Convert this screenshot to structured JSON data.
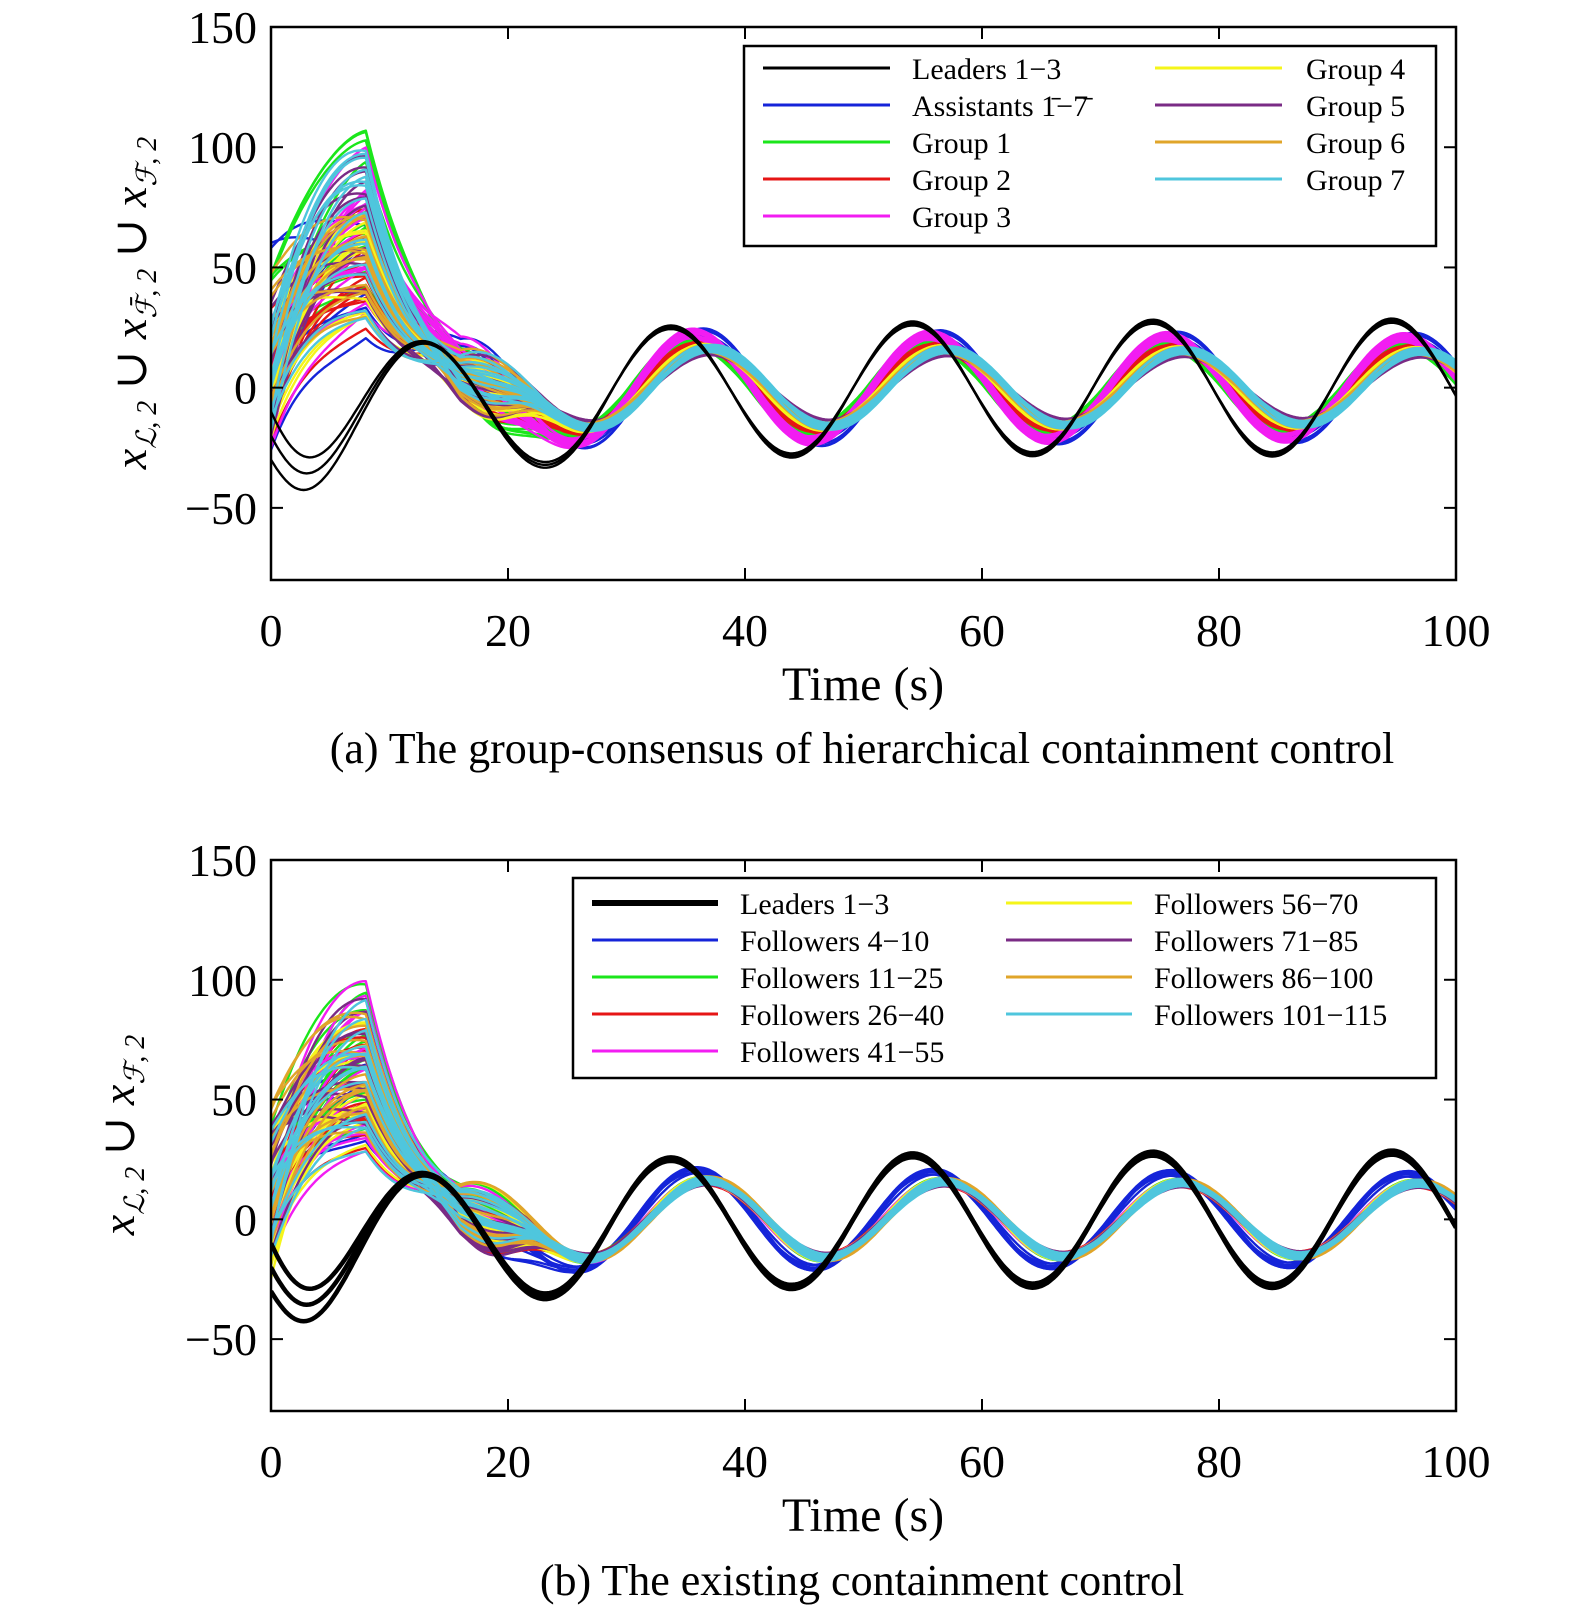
{
  "chart_data": [
    {
      "type": "line",
      "caption": "(a) The group-consensus of hierarchical containment control",
      "xlabel": "Time (s)",
      "ylabel": "x_{L,2} ∪ x_{F̄,2} ∪ x_{F,2}",
      "xlim": [
        0,
        100
      ],
      "ylim": [
        -80,
        150
      ],
      "xticks": [
        "0",
        "20",
        "40",
        "60",
        "80",
        "100"
      ],
      "yticks": [
        "−50",
        "0",
        "50",
        "100",
        "150"
      ],
      "grid": false,
      "legend_position": "top-right",
      "legend_columns": 2,
      "series": [
        {
          "name": "Leaders 1−3",
          "color": "#000000",
          "line_width": 2.4,
          "amp_scale": 1.0,
          "phase_shift": 0.0,
          "lines": 3,
          "t0": [
            -30,
            -20,
            -10
          ],
          "v0": [
            -1.0,
            -0.8,
            -0.6
          ]
        },
        {
          "name": "Assistants 1̄−7̄",
          "color": "#1524d9",
          "line_width": 2.4,
          "amp_scale": 0.85,
          "phase_shift": 0.6,
          "lines": 7,
          "t0": [
            -30,
            85
          ],
          "v0": [
            -2,
            2
          ]
        },
        {
          "name": "Group 1",
          "color": "#1be61b",
          "line_width": 2.4,
          "amp_scale": 0.7,
          "phase_shift": 0.25,
          "lines": 15,
          "t0": [
            -10,
            50
          ],
          "v0": [
            -1,
            2
          ]
        },
        {
          "name": "Group 2",
          "color": "#e61515",
          "line_width": 2.4,
          "amp_scale": 0.66,
          "phase_shift": 0.55,
          "lines": 15,
          "t0": [
            -25,
            40
          ],
          "v0": [
            -1,
            1
          ]
        },
        {
          "name": "Group 3",
          "color": "#f21df2",
          "line_width": 2.4,
          "amp_scale": 0.82,
          "phase_shift": 0.35,
          "lines": 15,
          "t0": [
            -25,
            35
          ],
          "v0": [
            -1,
            1
          ]
        },
        {
          "name": "Group 4",
          "color": "#f5f51a",
          "line_width": 2.4,
          "amp_scale": 0.62,
          "phase_shift": 0.8,
          "lines": 15,
          "t0": [
            -25,
            30
          ],
          "v0": [
            -1,
            2
          ]
        },
        {
          "name": "Group 5",
          "color": "#7a2b85",
          "line_width": 2.4,
          "amp_scale": 0.55,
          "phase_shift": 1.0,
          "lines": 15,
          "t0": [
            -20,
            40
          ],
          "v0": [
            -1,
            2
          ]
        },
        {
          "name": "Group 6",
          "color": "#e0a52a",
          "line_width": 2.4,
          "amp_scale": 0.6,
          "phase_shift": 0.95,
          "lines": 15,
          "t0": [
            -10,
            50
          ],
          "v0": [
            0,
            3
          ]
        },
        {
          "name": "Group 7",
          "color": "#4fc6dd",
          "line_width": 2.4,
          "amp_scale": 0.6,
          "phase_shift": 1.05,
          "lines": 15,
          "t0": [
            -20,
            40
          ],
          "v0": [
            -1,
            2
          ]
        }
      ]
    },
    {
      "type": "line",
      "caption": "(b) The existing containment control",
      "xlabel": "Time (s)",
      "ylabel": "x_{L,2} ∪ x_{F,2}",
      "xlim": [
        0,
        100
      ],
      "ylim": [
        -80,
        150
      ],
      "xticks": [
        "0",
        "20",
        "40",
        "60",
        "80",
        "100"
      ],
      "yticks": [
        "−50",
        "0",
        "50",
        "100",
        "150"
      ],
      "grid": false,
      "legend_position": "top-right",
      "legend_columns": 2,
      "series": [
        {
          "name": "Leaders 1−3",
          "color": "#000000",
          "line_width": 4.5,
          "amp_scale": 1.0,
          "phase_shift": 0.0,
          "lines": 3,
          "t0": [
            -30,
            -20,
            -10
          ],
          "v0": [
            -1.0,
            -0.8,
            -0.6
          ]
        },
        {
          "name": "Followers 4−10",
          "color": "#1524d9",
          "line_width": 2.4,
          "amp_scale": 0.78,
          "phase_shift": 0.45,
          "lines": 7,
          "t0": [
            -30,
            40
          ],
          "v0": [
            -2,
            2
          ]
        },
        {
          "name": "Followers 11−25",
          "color": "#1be61b",
          "line_width": 2.4,
          "amp_scale": 0.6,
          "phase_shift": 0.8,
          "lines": 15,
          "t0": [
            -15,
            40
          ],
          "v0": [
            -1,
            2
          ]
        },
        {
          "name": "Followers 26−40",
          "color": "#e61515",
          "line_width": 2.4,
          "amp_scale": 0.58,
          "phase_shift": 0.85,
          "lines": 15,
          "t0": [
            -20,
            35
          ],
          "v0": [
            -1,
            1
          ]
        },
        {
          "name": "Followers 41−55",
          "color": "#f21df2",
          "line_width": 2.4,
          "amp_scale": 0.6,
          "phase_shift": 0.85,
          "lines": 15,
          "t0": [
            -20,
            40
          ],
          "v0": [
            -1,
            2
          ]
        },
        {
          "name": "Followers 56−70",
          "color": "#f5f51a",
          "line_width": 2.4,
          "amp_scale": 0.6,
          "phase_shift": 0.85,
          "lines": 15,
          "t0": [
            -25,
            40
          ],
          "v0": [
            -1,
            3
          ]
        },
        {
          "name": "Followers 71−85",
          "color": "#7a2b85",
          "line_width": 2.4,
          "amp_scale": 0.58,
          "phase_shift": 0.9,
          "lines": 15,
          "t0": [
            -20,
            40
          ],
          "v0": [
            -1,
            2
          ]
        },
        {
          "name": "Followers 86−100",
          "color": "#e0a52a",
          "line_width": 2.4,
          "amp_scale": 0.6,
          "phase_shift": 0.95,
          "lines": 15,
          "t0": [
            -10,
            50
          ],
          "v0": [
            0,
            3
          ]
        },
        {
          "name": "Followers 101−115",
          "color": "#4fc6dd",
          "line_width": 2.4,
          "amp_scale": 0.6,
          "phase_shift": 0.95,
          "lines": 15,
          "t0": [
            -20,
            45
          ],
          "v0": [
            -1,
            3
          ]
        }
      ]
    }
  ]
}
